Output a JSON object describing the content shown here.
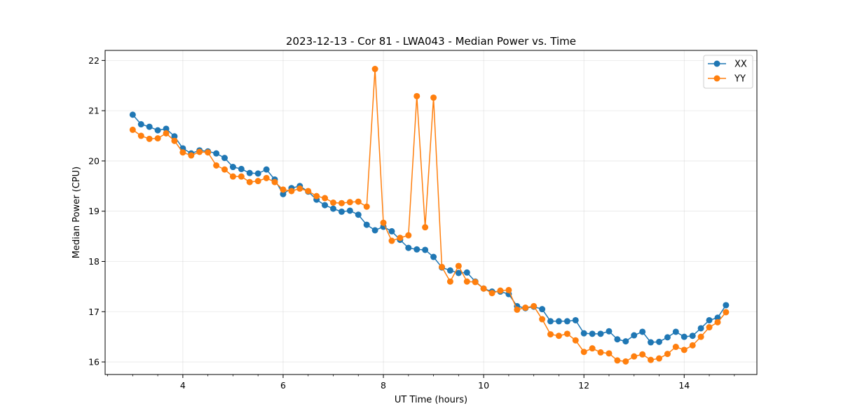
{
  "chart_data": {
    "type": "line",
    "title": "2023-12-13 - Cor 81 - LWA043 - Median Power vs. Time",
    "xlabel": "UT Time (hours)",
    "ylabel": "Median Power (CPU)",
    "xlim": [
      2.45,
      15.45
    ],
    "ylim": [
      15.75,
      22.2
    ],
    "xticks": [
      4,
      6,
      8,
      10,
      12,
      14
    ],
    "xtick_labels": [
      "4",
      "6",
      "8",
      "10",
      "12",
      "14"
    ],
    "yticks": [
      16,
      17,
      18,
      19,
      20,
      21,
      22
    ],
    "ytick_labels": [
      "16",
      "17",
      "18",
      "19",
      "20",
      "21",
      "22"
    ],
    "grid": true,
    "legend_position": "top-right",
    "x": [
      3.0,
      3.167,
      3.333,
      3.5,
      3.667,
      3.833,
      4.0,
      4.167,
      4.333,
      4.5,
      4.667,
      4.833,
      5.0,
      5.167,
      5.333,
      5.5,
      5.667,
      5.833,
      6.0,
      6.167,
      6.333,
      6.5,
      6.667,
      6.833,
      7.0,
      7.167,
      7.333,
      7.5,
      7.667,
      7.833,
      8.0,
      8.167,
      8.333,
      8.5,
      8.667,
      8.833,
      9.0,
      9.167,
      9.333,
      9.5,
      9.667,
      9.833,
      10.0,
      10.167,
      10.333,
      10.5,
      10.667,
      10.833,
      11.0,
      11.167,
      11.333,
      11.5,
      11.667,
      11.833,
      12.0,
      12.167,
      12.333,
      12.5,
      12.667,
      12.833,
      13.0,
      13.167,
      13.333,
      13.5,
      13.667,
      13.833,
      14.0,
      14.167,
      14.333,
      14.5,
      14.667,
      14.833
    ],
    "series": [
      {
        "name": "XX",
        "color": "#1f77b4",
        "values": [
          20.92,
          20.73,
          20.68,
          20.61,
          20.64,
          20.49,
          20.25,
          20.15,
          20.21,
          20.19,
          20.15,
          20.06,
          19.88,
          19.84,
          19.76,
          19.75,
          19.83,
          19.63,
          19.34,
          19.46,
          19.5,
          19.39,
          19.23,
          19.12,
          19.05,
          18.99,
          19.01,
          18.93,
          18.73,
          18.62,
          18.69,
          18.6,
          18.43,
          18.27,
          18.24,
          18.23,
          18.09,
          17.88,
          17.82,
          17.77,
          17.78,
          17.6,
          17.46,
          17.4,
          17.4,
          17.35,
          17.11,
          17.07,
          17.1,
          17.05,
          16.81,
          16.81,
          16.81,
          16.83,
          16.57,
          16.56,
          16.56,
          16.61,
          16.45,
          16.41,
          16.53,
          16.6,
          16.39,
          16.4,
          16.49,
          16.6,
          16.5,
          16.52,
          16.67,
          16.83,
          16.88,
          17.13
        ]
      },
      {
        "name": "YY",
        "color": "#ff7f0e",
        "values": [
          20.62,
          20.5,
          20.44,
          20.45,
          20.55,
          20.4,
          20.17,
          20.11,
          20.18,
          20.17,
          19.91,
          19.83,
          19.69,
          19.69,
          19.58,
          19.6,
          19.66,
          19.58,
          19.43,
          19.4,
          19.45,
          19.4,
          19.3,
          19.26,
          19.17,
          19.16,
          19.18,
          19.19,
          19.09,
          21.83,
          18.77,
          18.41,
          18.47,
          18.52,
          21.29,
          18.68,
          21.26,
          17.89,
          17.6,
          17.91,
          17.6,
          17.59,
          17.46,
          17.37,
          17.42,
          17.43,
          17.04,
          17.08,
          17.11,
          16.85,
          16.55,
          16.52,
          16.56,
          16.43,
          16.2,
          16.27,
          16.19,
          16.17,
          16.03,
          16.01,
          16.11,
          16.15,
          16.04,
          16.07,
          16.16,
          16.3,
          16.24,
          16.33,
          16.5,
          16.69,
          16.79,
          16.99
        ]
      }
    ]
  }
}
